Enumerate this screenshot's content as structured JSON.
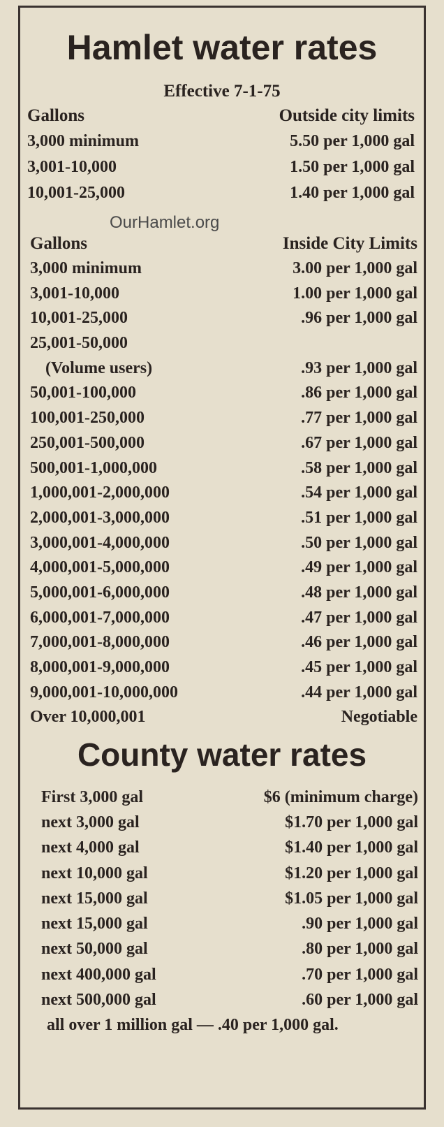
{
  "hamlet": {
    "title": "Hamlet water rates",
    "effective": "Effective 7-1-75",
    "outside": {
      "header": [
        "Gallons",
        "Outside city limits"
      ],
      "rows": [
        [
          "3,000 minimum",
          "5.50 per 1,000 gal"
        ],
        [
          "3,001-10,000",
          "1.50 per 1,000 gal"
        ],
        [
          "10,001-25,000",
          "1.40 per 1,000 gal"
        ]
      ]
    },
    "watermark": "OurHamlet.org",
    "inside": {
      "header": [
        "Gallons",
        "Inside City Limits"
      ],
      "rows": [
        [
          "3,000 minimum",
          "3.00 per 1,000 gal"
        ],
        [
          "3,001-10,000",
          "1.00 per 1,000 gal"
        ],
        [
          "10,001-25,000",
          ".96 per 1,000 gal"
        ],
        [
          "25,001-50,000"
        ],
        [
          "(Volume users)",
          ".93 per 1,000 gal"
        ],
        [
          "50,001-100,000",
          ".86 per 1,000 gal"
        ],
        [
          "100,001-250,000",
          ".77 per 1,000 gal"
        ],
        [
          "250,001-500,000",
          ".67 per 1,000 gal"
        ],
        [
          "500,001-1,000,000",
          ".58 per 1,000 gal"
        ],
        [
          "1,000,001-2,000,000",
          ".54 per 1,000 gal"
        ],
        [
          "2,000,001-3,000,000",
          ".51 per 1,000 gal"
        ],
        [
          "3,000,001-4,000,000",
          ".50 per 1,000 gal"
        ],
        [
          "4,000,001-5,000,000",
          ".49 per 1,000 gal"
        ],
        [
          "5,000,001-6,000,000",
          ".48 per 1,000 gal"
        ],
        [
          "6,000,001-7,000,000",
          ".47 per 1,000 gal"
        ],
        [
          "7,000,001-8,000,000",
          ".46 per 1,000 gal"
        ],
        [
          "8,000,001-9,000,000",
          ".45 per 1,000 gal"
        ],
        [
          "9,000,001-10,000,000",
          ".44 per 1,000 gal"
        ],
        [
          "Over 10,000,001",
          "Negotiable"
        ]
      ]
    }
  },
  "county": {
    "title": "County water rates",
    "rows": [
      [
        "First 3,000 gal",
        "$6 (minimum charge)"
      ],
      [
        "next 3,000 gal",
        "$1.70 per 1,000 gal"
      ],
      [
        "next 4,000 gal",
        "$1.40 per 1,000 gal"
      ],
      [
        "next 10,000 gal",
        "$1.20 per 1,000 gal"
      ],
      [
        "next 15,000 gal",
        "$1.05 per 1,000 gal"
      ],
      [
        "next 15,000 gal",
        ".90 per 1,000 gal"
      ],
      [
        "next 50,000 gal",
        ".80 per 1,000 gal"
      ],
      [
        "next 400,000 gal",
        ".70 per 1,000 gal"
      ],
      [
        "next 500,000 gal",
        ".60 per 1,000 gal"
      ]
    ],
    "note": "all over 1 million gal — .40 per 1,000 gal."
  }
}
